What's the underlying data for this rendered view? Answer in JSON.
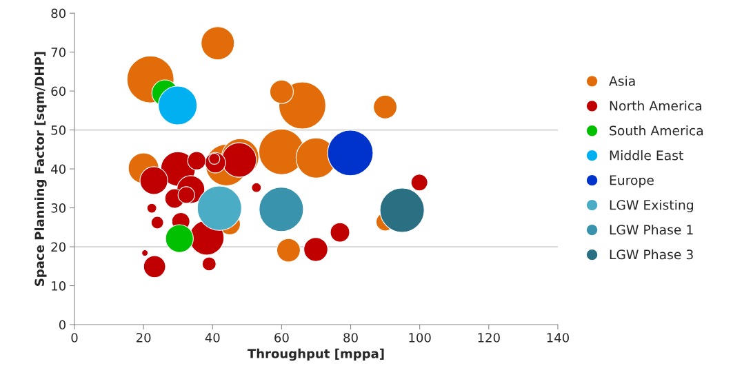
{
  "chart_data": {
    "type": "bubble",
    "xlabel": "Throughput [mppa]",
    "ylabel": "Space Planning Factor [sqm/DHP]",
    "xlim": [
      0,
      140
    ],
    "xticks": [
      0,
      20,
      40,
      60,
      80,
      100,
      120,
      140
    ],
    "ylim": [
      0,
      80
    ],
    "yticks": [
      0,
      10,
      20,
      30,
      40,
      50,
      60,
      70,
      80
    ],
    "legend": "right",
    "ref_lines": [
      {
        "axis": "y",
        "value": 20,
        "color": "#d0d0d0"
      },
      {
        "axis": "y",
        "value": 50,
        "color": "#d0d0d0"
      }
    ],
    "series": [
      {
        "name": "Asia",
        "color": "#e36c0a",
        "x": [
          22,
          41.5,
          60,
          66,
          90,
          20,
          44,
          48,
          60,
          70,
          45,
          62,
          90
        ],
        "values": [
          63,
          72.3,
          59.8,
          56.3,
          55.9,
          40.2,
          41,
          43,
          44.4,
          42.8,
          25.8,
          19.1,
          26.4
        ],
        "sizes": [
          1.0,
          0.5,
          0.25,
          1.0,
          0.25,
          0.42,
          0.78,
          0.63,
          0.94,
          0.73,
          0.2,
          0.25,
          0.15
        ]
      },
      {
        "name": "North America",
        "color": "#c00000",
        "x": [
          23,
          30,
          35.4,
          40.8,
          40.5,
          47.7,
          33.7,
          32.4,
          29,
          22.4,
          24,
          30.8,
          38.3,
          20.4,
          23.2,
          39,
          52.7,
          69.9,
          76.9,
          99.9
        ],
        "values": [
          37,
          40,
          42.1,
          41.6,
          42.6,
          42.3,
          34.7,
          33.3,
          32.4,
          29.9,
          26.2,
          26.5,
          22.3,
          18.4,
          14.9,
          15.6,
          35.2,
          19.3,
          23.7,
          36.5
        ],
        "sizes": [
          0.35,
          0.54,
          0.15,
          0.19,
          0.055,
          0.54,
          0.35,
          0.125,
          0.17,
          0.042,
          0.07,
          0.146,
          0.54,
          0.018,
          0.22,
          0.087,
          0.042,
          0.26,
          0.17,
          0.125
        ]
      },
      {
        "name": "South America",
        "color": "#00c000",
        "x": [
          26.2,
          30.4
        ],
        "values": [
          59.5,
          22.1
        ],
        "sizes": [
          0.31,
          0.35
        ]
      },
      {
        "name": "Middle East",
        "color": "#00b0f0",
        "x": [
          29.9
        ],
        "values": [
          56.3
        ],
        "sizes": [
          0.68
        ]
      },
      {
        "name": "Europe",
        "color": "#0033cc",
        "x": [
          79.9
        ],
        "values": [
          44.1
        ],
        "sizes": [
          0.94
        ]
      },
      {
        "name": "LGW Existing",
        "color": "#4bacc6",
        "x": [
          42
        ],
        "values": [
          29.9
        ],
        "sizes": [
          0.89
        ]
      },
      {
        "name": "LGW Phase 1",
        "color": "#3a93ad",
        "x": [
          59.9
        ],
        "values": [
          29.6
        ],
        "sizes": [
          0.89
        ]
      },
      {
        "name": "LGW Phase 3",
        "color": "#2a6f82",
        "x": [
          94.9
        ],
        "values": [
          29.4
        ],
        "sizes": [
          0.89
        ]
      }
    ]
  }
}
